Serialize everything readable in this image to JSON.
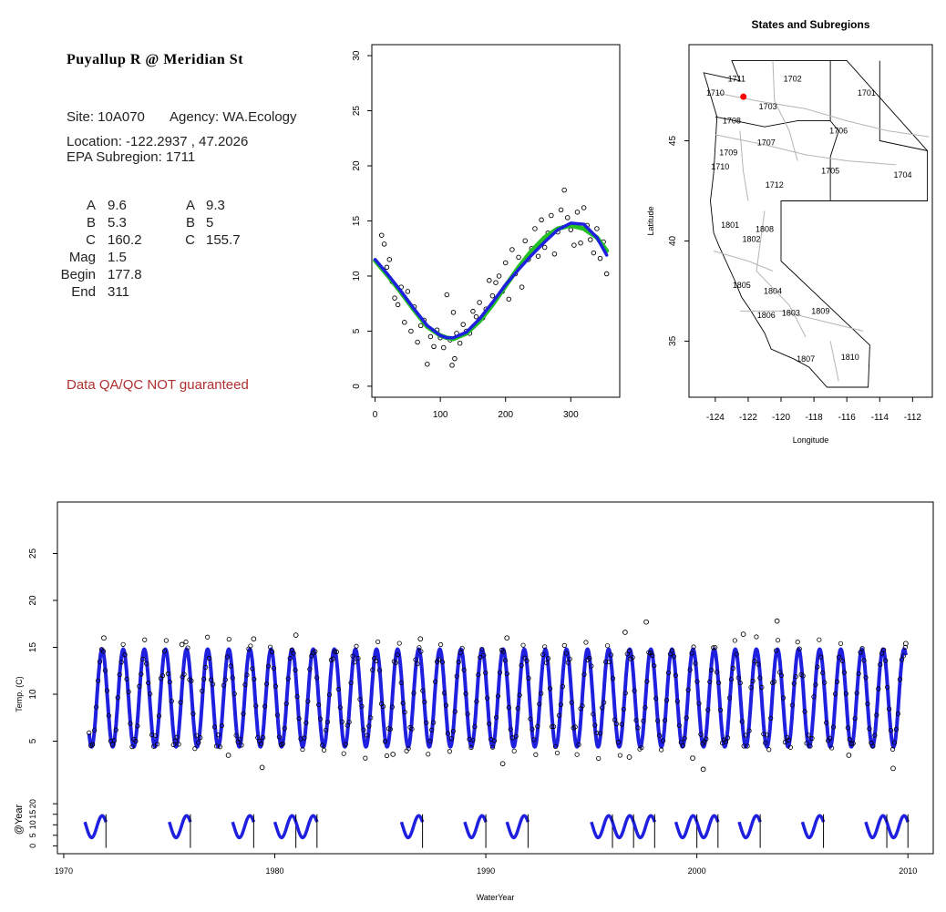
{
  "info": {
    "title": "Puyallup R @ Meridian St",
    "site_line": "Site: 10A070",
    "agency_line": "Agency: WA.Ecology",
    "location_line": "Location: -122.2937 , 47.2026",
    "subregion_line": "EPA Subregion: 1711",
    "params_left": [
      {
        "label": "A",
        "value": "9.6"
      },
      {
        "label": "B",
        "value": "5.3"
      },
      {
        "label": "C",
        "value": "160.2"
      },
      {
        "label": "Mag",
        "value": "1.5"
      },
      {
        "label": "Begin",
        "value": "177.8"
      },
      {
        "label": "End",
        "value": "311"
      }
    ],
    "params_right": [
      {
        "label": "A",
        "value": "9.3"
      },
      {
        "label": "B",
        "value": "5"
      },
      {
        "label": "C",
        "value": "155.7"
      }
    ],
    "warning": "Data QA/QC NOT guaranteed"
  },
  "chart_data": [
    {
      "type": "scatter",
      "title": "",
      "xlabel": "",
      "ylabel": "",
      "xlim": [
        -5,
        375
      ],
      "ylim": [
        -1,
        31
      ],
      "x_ticks": [
        0,
        100,
        200,
        300
      ],
      "y_ticks": [
        0,
        5,
        10,
        15,
        20,
        25,
        30
      ],
      "series": [
        {
          "mark": "points",
          "color": "#000000",
          "x": [
            10,
            14,
            18,
            22,
            26,
            30,
            35,
            40,
            45,
            50,
            55,
            60,
            65,
            70,
            75,
            80,
            85,
            90,
            95,
            100,
            105,
            110,
            115,
            118,
            120,
            122,
            125,
            130,
            135,
            140,
            145,
            150,
            155,
            160,
            165,
            170,
            175,
            180,
            185,
            190,
            195,
            200,
            205,
            210,
            215,
            220,
            225,
            230,
            235,
            240,
            245,
            250,
            255,
            260,
            265,
            270,
            275,
            280,
            285,
            290,
            295,
            300,
            305,
            310,
            315,
            320,
            325,
            330,
            335,
            340,
            345,
            350,
            355
          ],
          "y": [
            13.7,
            12.9,
            10.8,
            11.5,
            9.5,
            8.0,
            7.4,
            9.0,
            5.8,
            8.6,
            5.0,
            7.2,
            4.0,
            5.5,
            6.0,
            2.0,
            4.5,
            3.6,
            5.1,
            4.4,
            3.5,
            8.3,
            4.2,
            1.9,
            6.7,
            2.5,
            4.8,
            3.9,
            5.6,
            5.0,
            4.8,
            6.8,
            6.3,
            7.6,
            6.2,
            7.0,
            9.6,
            8.2,
            9.4,
            10.0,
            8.6,
            11.2,
            7.9,
            12.4,
            10.2,
            11.7,
            9.0,
            13.2,
            11.5,
            12.5,
            14.3,
            11.8,
            15.1,
            12.6,
            13.9,
            15.5,
            12.0,
            14.0,
            16.0,
            17.8,
            15.3,
            14.2,
            12.8,
            15.8,
            13.0,
            16.2,
            14.6,
            13.3,
            12.1,
            14.3,
            11.6,
            13.1,
            10.2
          ]
        },
        {
          "name": "",
          "mark": "line",
          "color": "#22c022",
          "x": [
            0,
            20,
            40,
            60,
            80,
            100,
            110,
            120,
            140,
            160,
            180,
            200,
            220,
            240,
            260,
            280,
            300,
            320,
            340,
            355
          ],
          "y": [
            11.4,
            10.0,
            8.5,
            6.9,
            5.4,
            4.6,
            4.4,
            4.3,
            4.8,
            5.9,
            7.4,
            9.1,
            10.8,
            12.3,
            13.5,
            14.3,
            14.6,
            14.3,
            13.5,
            12.3
          ]
        },
        {
          "name": "",
          "mark": "line",
          "color": "#1f1fe0",
          "x": [
            0,
            20,
            40,
            60,
            80,
            100,
            110,
            120,
            140,
            160,
            180,
            200,
            220,
            240,
            260,
            280,
            300,
            320,
            340,
            355
          ],
          "y": [
            11.5,
            10.1,
            8.6,
            7.0,
            5.5,
            4.6,
            4.4,
            4.4,
            4.9,
            6.1,
            7.6,
            9.2,
            10.6,
            11.9,
            13.1,
            14.2,
            14.8,
            14.7,
            13.5,
            11.9
          ]
        }
      ]
    },
    {
      "type": "map",
      "title": "States and Subregions",
      "xlabel": "Longitude",
      "ylabel": "Latitude",
      "xlim": [
        -125.6,
        -110.8
      ],
      "ylim": [
        32.2,
        49.8
      ],
      "x_ticks": [
        -124,
        -122,
        -120,
        -118,
        -116,
        -114,
        -112
      ],
      "y_ticks": [
        35,
        40,
        45
      ],
      "site": {
        "lon": -122.29,
        "lat": 47.2,
        "color": "#ff0000"
      },
      "region_labels": [
        {
          "code": "1711",
          "lon": -122.7,
          "lat": 48.1
        },
        {
          "code": "1710",
          "lon": -124.0,
          "lat": 47.4
        },
        {
          "code": "1702",
          "lon": -119.3,
          "lat": 48.1
        },
        {
          "code": "1701",
          "lon": -114.8,
          "lat": 47.4
        },
        {
          "code": "1703",
          "lon": -120.8,
          "lat": 46.7
        },
        {
          "code": "1708",
          "lon": -123.0,
          "lat": 46.0
        },
        {
          "code": "1706",
          "lon": -116.5,
          "lat": 45.5
        },
        {
          "code": "1707",
          "lon": -120.9,
          "lat": 44.9
        },
        {
          "code": "1709",
          "lon": -123.2,
          "lat": 44.4
        },
        {
          "code": "1710",
          "lon": -123.7,
          "lat": 43.7
        },
        {
          "code": "1705",
          "lon": -117.0,
          "lat": 43.5
        },
        {
          "code": "1704",
          "lon": -112.6,
          "lat": 43.3
        },
        {
          "code": "1712",
          "lon": -120.4,
          "lat": 42.8
        },
        {
          "code": "1801",
          "lon": -123.1,
          "lat": 40.8
        },
        {
          "code": "1808",
          "lon": -121.0,
          "lat": 40.6
        },
        {
          "code": "1802",
          "lon": -121.8,
          "lat": 40.1
        },
        {
          "code": "1805",
          "lon": -122.4,
          "lat": 37.8
        },
        {
          "code": "1804",
          "lon": -120.5,
          "lat": 37.5
        },
        {
          "code": "1806",
          "lon": -120.9,
          "lat": 36.3
        },
        {
          "code": "1803",
          "lon": -119.4,
          "lat": 36.4
        },
        {
          "code": "1809",
          "lon": -117.6,
          "lat": 36.5
        },
        {
          "code": "1807",
          "lon": -118.5,
          "lat": 34.1
        },
        {
          "code": "1810",
          "lon": -115.8,
          "lat": 34.2
        }
      ]
    },
    {
      "type": "line",
      "title": "",
      "xlabel": "WaterYear",
      "ylabel": "Temp. (C)",
      "xlim": [
        1969.7,
        2011.2
      ],
      "ylim": [
        0,
        30
      ],
      "x_ticks": [
        1970,
        1980,
        1990,
        2000,
        2010
      ],
      "y_ticks": [
        5,
        10,
        15,
        20,
        25
      ],
      "fit": {
        "start": 1971.2,
        "end": 2009.9,
        "period_years": 1,
        "mean": 9.6,
        "amplitude": 5.2,
        "peak_phase": 0.82,
        "color": "#1f1fe0"
      },
      "outlier_points": [
        {
          "x": 1971.9,
          "y": 16.0
        },
        {
          "x": 1975.6,
          "y": 15.3
        },
        {
          "x": 1977.8,
          "y": 3.5
        },
        {
          "x": 1979.0,
          "y": 15.9
        },
        {
          "x": 1979.4,
          "y": 2.2
        },
        {
          "x": 1981.0,
          "y": 16.3
        },
        {
          "x": 1985.6,
          "y": 3.6
        },
        {
          "x": 1986.9,
          "y": 15.9
        },
        {
          "x": 1990.8,
          "y": 2.6
        },
        {
          "x": 1991.0,
          "y": 16.0
        },
        {
          "x": 1996.6,
          "y": 16.6
        },
        {
          "x": 1996.8,
          "y": 3.3
        },
        {
          "x": 1997.6,
          "y": 17.7
        },
        {
          "x": 1999.8,
          "y": 3.2
        },
        {
          "x": 2000.3,
          "y": 2.0
        },
        {
          "x": 2002.2,
          "y": 16.4
        },
        {
          "x": 2003.8,
          "y": 17.8
        },
        {
          "x": 2007.2,
          "y": 3.5
        },
        {
          "x": 2009.3,
          "y": 2.1
        },
        {
          "x": 2009.9,
          "y": 15.4
        }
      ],
      "year_panel": {
        "ylabel": "@Year",
        "y_ticks": [
          0,
          5,
          10,
          15,
          20
        ],
        "ylim": [
          -2,
          27
        ],
        "years": [
          1971,
          1975,
          1978,
          1980,
          1981,
          1986,
          1989,
          1991,
          1995,
          1996,
          1997,
          1999,
          2000,
          2002,
          2005,
          2008,
          2009
        ]
      }
    }
  ]
}
